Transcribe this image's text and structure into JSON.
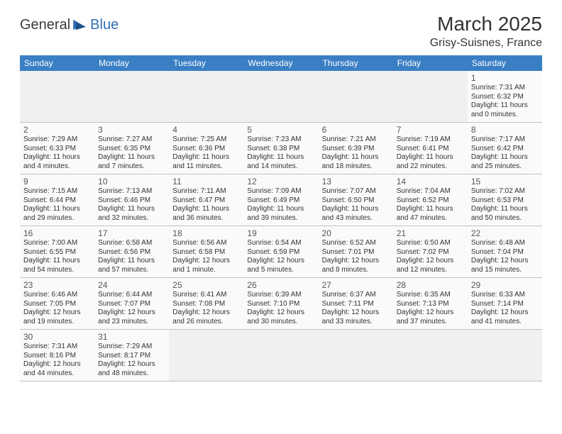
{
  "logo": {
    "part1": "General",
    "part2": "Blue"
  },
  "title": "March 2025",
  "location": "Grisy-Suisnes, France",
  "colors": {
    "header_bg": "#3a7fc4",
    "header_fg": "#ffffff",
    "grid_line": "#b8c4d0",
    "cell_bg": "#fafafa",
    "empty_bg": "#f0f0f0",
    "text": "#333333",
    "logo_blue": "#2e6fb4"
  },
  "day_headers": [
    "Sunday",
    "Monday",
    "Tuesday",
    "Wednesday",
    "Thursday",
    "Friday",
    "Saturday"
  ],
  "weeks": [
    [
      null,
      null,
      null,
      null,
      null,
      null,
      {
        "d": "1",
        "sr": "7:31 AM",
        "ss": "6:32 PM",
        "dl": "11 hours and 0 minutes."
      }
    ],
    [
      {
        "d": "2",
        "sr": "7:29 AM",
        "ss": "6:33 PM",
        "dl": "11 hours and 4 minutes."
      },
      {
        "d": "3",
        "sr": "7:27 AM",
        "ss": "6:35 PM",
        "dl": "11 hours and 7 minutes."
      },
      {
        "d": "4",
        "sr": "7:25 AM",
        "ss": "6:36 PM",
        "dl": "11 hours and 11 minutes."
      },
      {
        "d": "5",
        "sr": "7:23 AM",
        "ss": "6:38 PM",
        "dl": "11 hours and 14 minutes."
      },
      {
        "d": "6",
        "sr": "7:21 AM",
        "ss": "6:39 PM",
        "dl": "11 hours and 18 minutes."
      },
      {
        "d": "7",
        "sr": "7:19 AM",
        "ss": "6:41 PM",
        "dl": "11 hours and 22 minutes."
      },
      {
        "d": "8",
        "sr": "7:17 AM",
        "ss": "6:42 PM",
        "dl": "11 hours and 25 minutes."
      }
    ],
    [
      {
        "d": "9",
        "sr": "7:15 AM",
        "ss": "6:44 PM",
        "dl": "11 hours and 29 minutes."
      },
      {
        "d": "10",
        "sr": "7:13 AM",
        "ss": "6:46 PM",
        "dl": "11 hours and 32 minutes."
      },
      {
        "d": "11",
        "sr": "7:11 AM",
        "ss": "6:47 PM",
        "dl": "11 hours and 36 minutes."
      },
      {
        "d": "12",
        "sr": "7:09 AM",
        "ss": "6:49 PM",
        "dl": "11 hours and 39 minutes."
      },
      {
        "d": "13",
        "sr": "7:07 AM",
        "ss": "6:50 PM",
        "dl": "11 hours and 43 minutes."
      },
      {
        "d": "14",
        "sr": "7:04 AM",
        "ss": "6:52 PM",
        "dl": "11 hours and 47 minutes."
      },
      {
        "d": "15",
        "sr": "7:02 AM",
        "ss": "6:53 PM",
        "dl": "11 hours and 50 minutes."
      }
    ],
    [
      {
        "d": "16",
        "sr": "7:00 AM",
        "ss": "6:55 PM",
        "dl": "11 hours and 54 minutes."
      },
      {
        "d": "17",
        "sr": "6:58 AM",
        "ss": "6:56 PM",
        "dl": "11 hours and 57 minutes."
      },
      {
        "d": "18",
        "sr": "6:56 AM",
        "ss": "6:58 PM",
        "dl": "12 hours and 1 minute."
      },
      {
        "d": "19",
        "sr": "6:54 AM",
        "ss": "6:59 PM",
        "dl": "12 hours and 5 minutes."
      },
      {
        "d": "20",
        "sr": "6:52 AM",
        "ss": "7:01 PM",
        "dl": "12 hours and 8 minutes."
      },
      {
        "d": "21",
        "sr": "6:50 AM",
        "ss": "7:02 PM",
        "dl": "12 hours and 12 minutes."
      },
      {
        "d": "22",
        "sr": "6:48 AM",
        "ss": "7:04 PM",
        "dl": "12 hours and 15 minutes."
      }
    ],
    [
      {
        "d": "23",
        "sr": "6:46 AM",
        "ss": "7:05 PM",
        "dl": "12 hours and 19 minutes."
      },
      {
        "d": "24",
        "sr": "6:44 AM",
        "ss": "7:07 PM",
        "dl": "12 hours and 23 minutes."
      },
      {
        "d": "25",
        "sr": "6:41 AM",
        "ss": "7:08 PM",
        "dl": "12 hours and 26 minutes."
      },
      {
        "d": "26",
        "sr": "6:39 AM",
        "ss": "7:10 PM",
        "dl": "12 hours and 30 minutes."
      },
      {
        "d": "27",
        "sr": "6:37 AM",
        "ss": "7:11 PM",
        "dl": "12 hours and 33 minutes."
      },
      {
        "d": "28",
        "sr": "6:35 AM",
        "ss": "7:13 PM",
        "dl": "12 hours and 37 minutes."
      },
      {
        "d": "29",
        "sr": "6:33 AM",
        "ss": "7:14 PM",
        "dl": "12 hours and 41 minutes."
      }
    ],
    [
      {
        "d": "30",
        "sr": "7:31 AM",
        "ss": "8:16 PM",
        "dl": "12 hours and 44 minutes."
      },
      {
        "d": "31",
        "sr": "7:29 AM",
        "ss": "8:17 PM",
        "dl": "12 hours and 48 minutes."
      },
      null,
      null,
      null,
      null,
      null
    ]
  ],
  "labels": {
    "sunrise": "Sunrise:",
    "sunset": "Sunset:",
    "daylight": "Daylight:"
  }
}
